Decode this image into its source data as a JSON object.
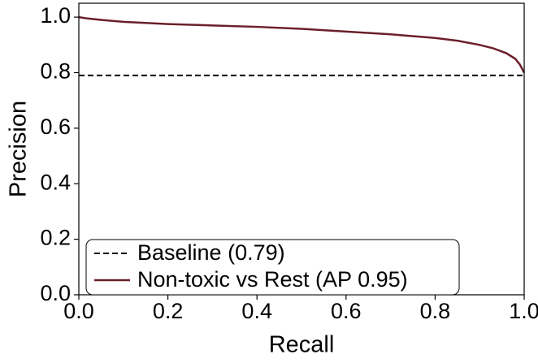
{
  "chart_data": {
    "type": "line",
    "x_label": "Recall",
    "y_label": "Precision",
    "xlim": [
      0,
      1
    ],
    "ylim": [
      0,
      1.05
    ],
    "xticks": [
      {
        "value": 0,
        "label": "0.0"
      },
      {
        "value": 0.2,
        "label": "0.2"
      },
      {
        "value": 0.4,
        "label": "0.4"
      },
      {
        "value": 0.6,
        "label": "0.6"
      },
      {
        "value": 0.8,
        "label": "0.8"
      },
      {
        "value": 1,
        "label": "1.0"
      }
    ],
    "yticks": [
      {
        "value": 0,
        "label": "0.0"
      },
      {
        "value": 0.2,
        "label": "0.2"
      },
      {
        "value": 0.4,
        "label": "0.4"
      },
      {
        "value": 0.6,
        "label": "0.6"
      },
      {
        "value": 0.8,
        "label": "0.8"
      },
      {
        "value": 1,
        "label": "1.0"
      }
    ],
    "legend": "lower left",
    "series": [
      {
        "name": "Baseline (0.79)",
        "color": "#000000",
        "dashed": true,
        "x": [
          0,
          1
        ],
        "values": [
          0.79,
          0.79
        ]
      },
      {
        "name": "Non-toxic vs Rest (AP 0.95)",
        "color": "#6b1f2a",
        "dashed": false,
        "x": [
          0,
          0.02,
          0.05,
          0.1,
          0.15,
          0.2,
          0.3,
          0.4,
          0.5,
          0.6,
          0.7,
          0.8,
          0.85,
          0.9,
          0.93,
          0.96,
          0.98,
          0.99,
          1.0
        ],
        "values": [
          1.0,
          0.995,
          0.99,
          0.983,
          0.979,
          0.975,
          0.97,
          0.965,
          0.958,
          0.948,
          0.938,
          0.925,
          0.915,
          0.9,
          0.888,
          0.87,
          0.85,
          0.83,
          0.8
        ]
      }
    ]
  }
}
